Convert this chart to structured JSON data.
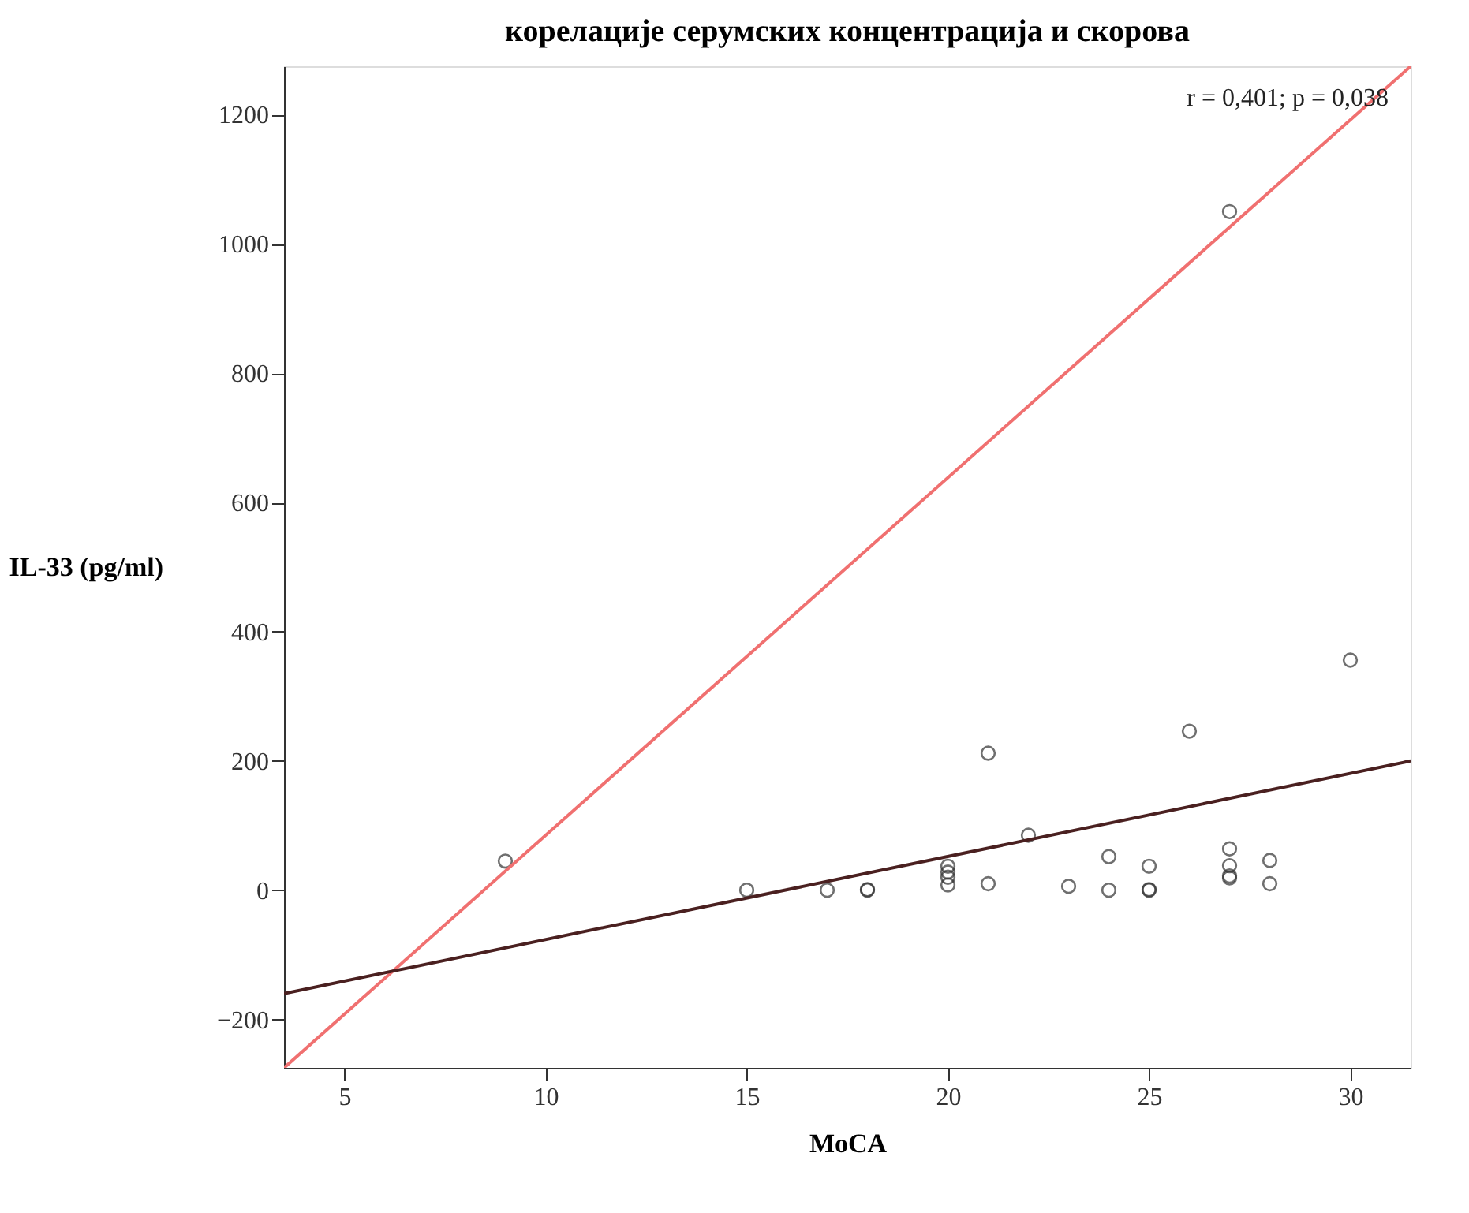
{
  "chart_data": {
    "type": "scatter",
    "title": "корелације серумских концентрација и скорова",
    "xlabel": "MoCA",
    "ylabel": "IL-33 (pg/ml)",
    "annotations": [
      "r = 0,401; p = 0,038"
    ],
    "xlim": [
      3.5,
      31.5
    ],
    "ylim": [
      -275,
      1275
    ],
    "xticks": [
      5,
      10,
      15,
      20,
      25,
      30
    ],
    "yticks": [
      -200,
      0,
      200,
      400,
      600,
      800,
      1000,
      1200
    ],
    "grid": false,
    "marker": "circle",
    "series": [
      {
        "color": "#333333",
        "x": [
          9,
          27,
          30,
          26,
          21,
          22,
          15,
          17,
          18,
          18,
          20,
          20,
          20,
          20,
          21,
          23,
          24,
          24,
          25,
          25,
          25,
          27,
          27,
          27,
          27,
          28,
          28
        ],
        "values": [
          45,
          1050,
          356,
          246,
          212,
          85,
          0,
          0,
          0,
          1,
          37,
          28,
          20,
          8,
          10,
          6,
          52,
          0,
          37,
          0,
          1,
          64,
          38,
          22,
          19,
          46,
          10
        ]
      },
      {
        "type": "line",
        "color": "#f07070",
        "line_style": "solid",
        "marker": "none",
        "x": [
          3.5,
          31.5
        ],
        "values": [
          -275,
          1275
        ]
      },
      {
        "type": "line",
        "color": "#4a2020",
        "line_style": "solid",
        "marker": "none",
        "x": [
          3.5,
          31.5
        ],
        "values": [
          -160,
          200
        ]
      }
    ]
  }
}
